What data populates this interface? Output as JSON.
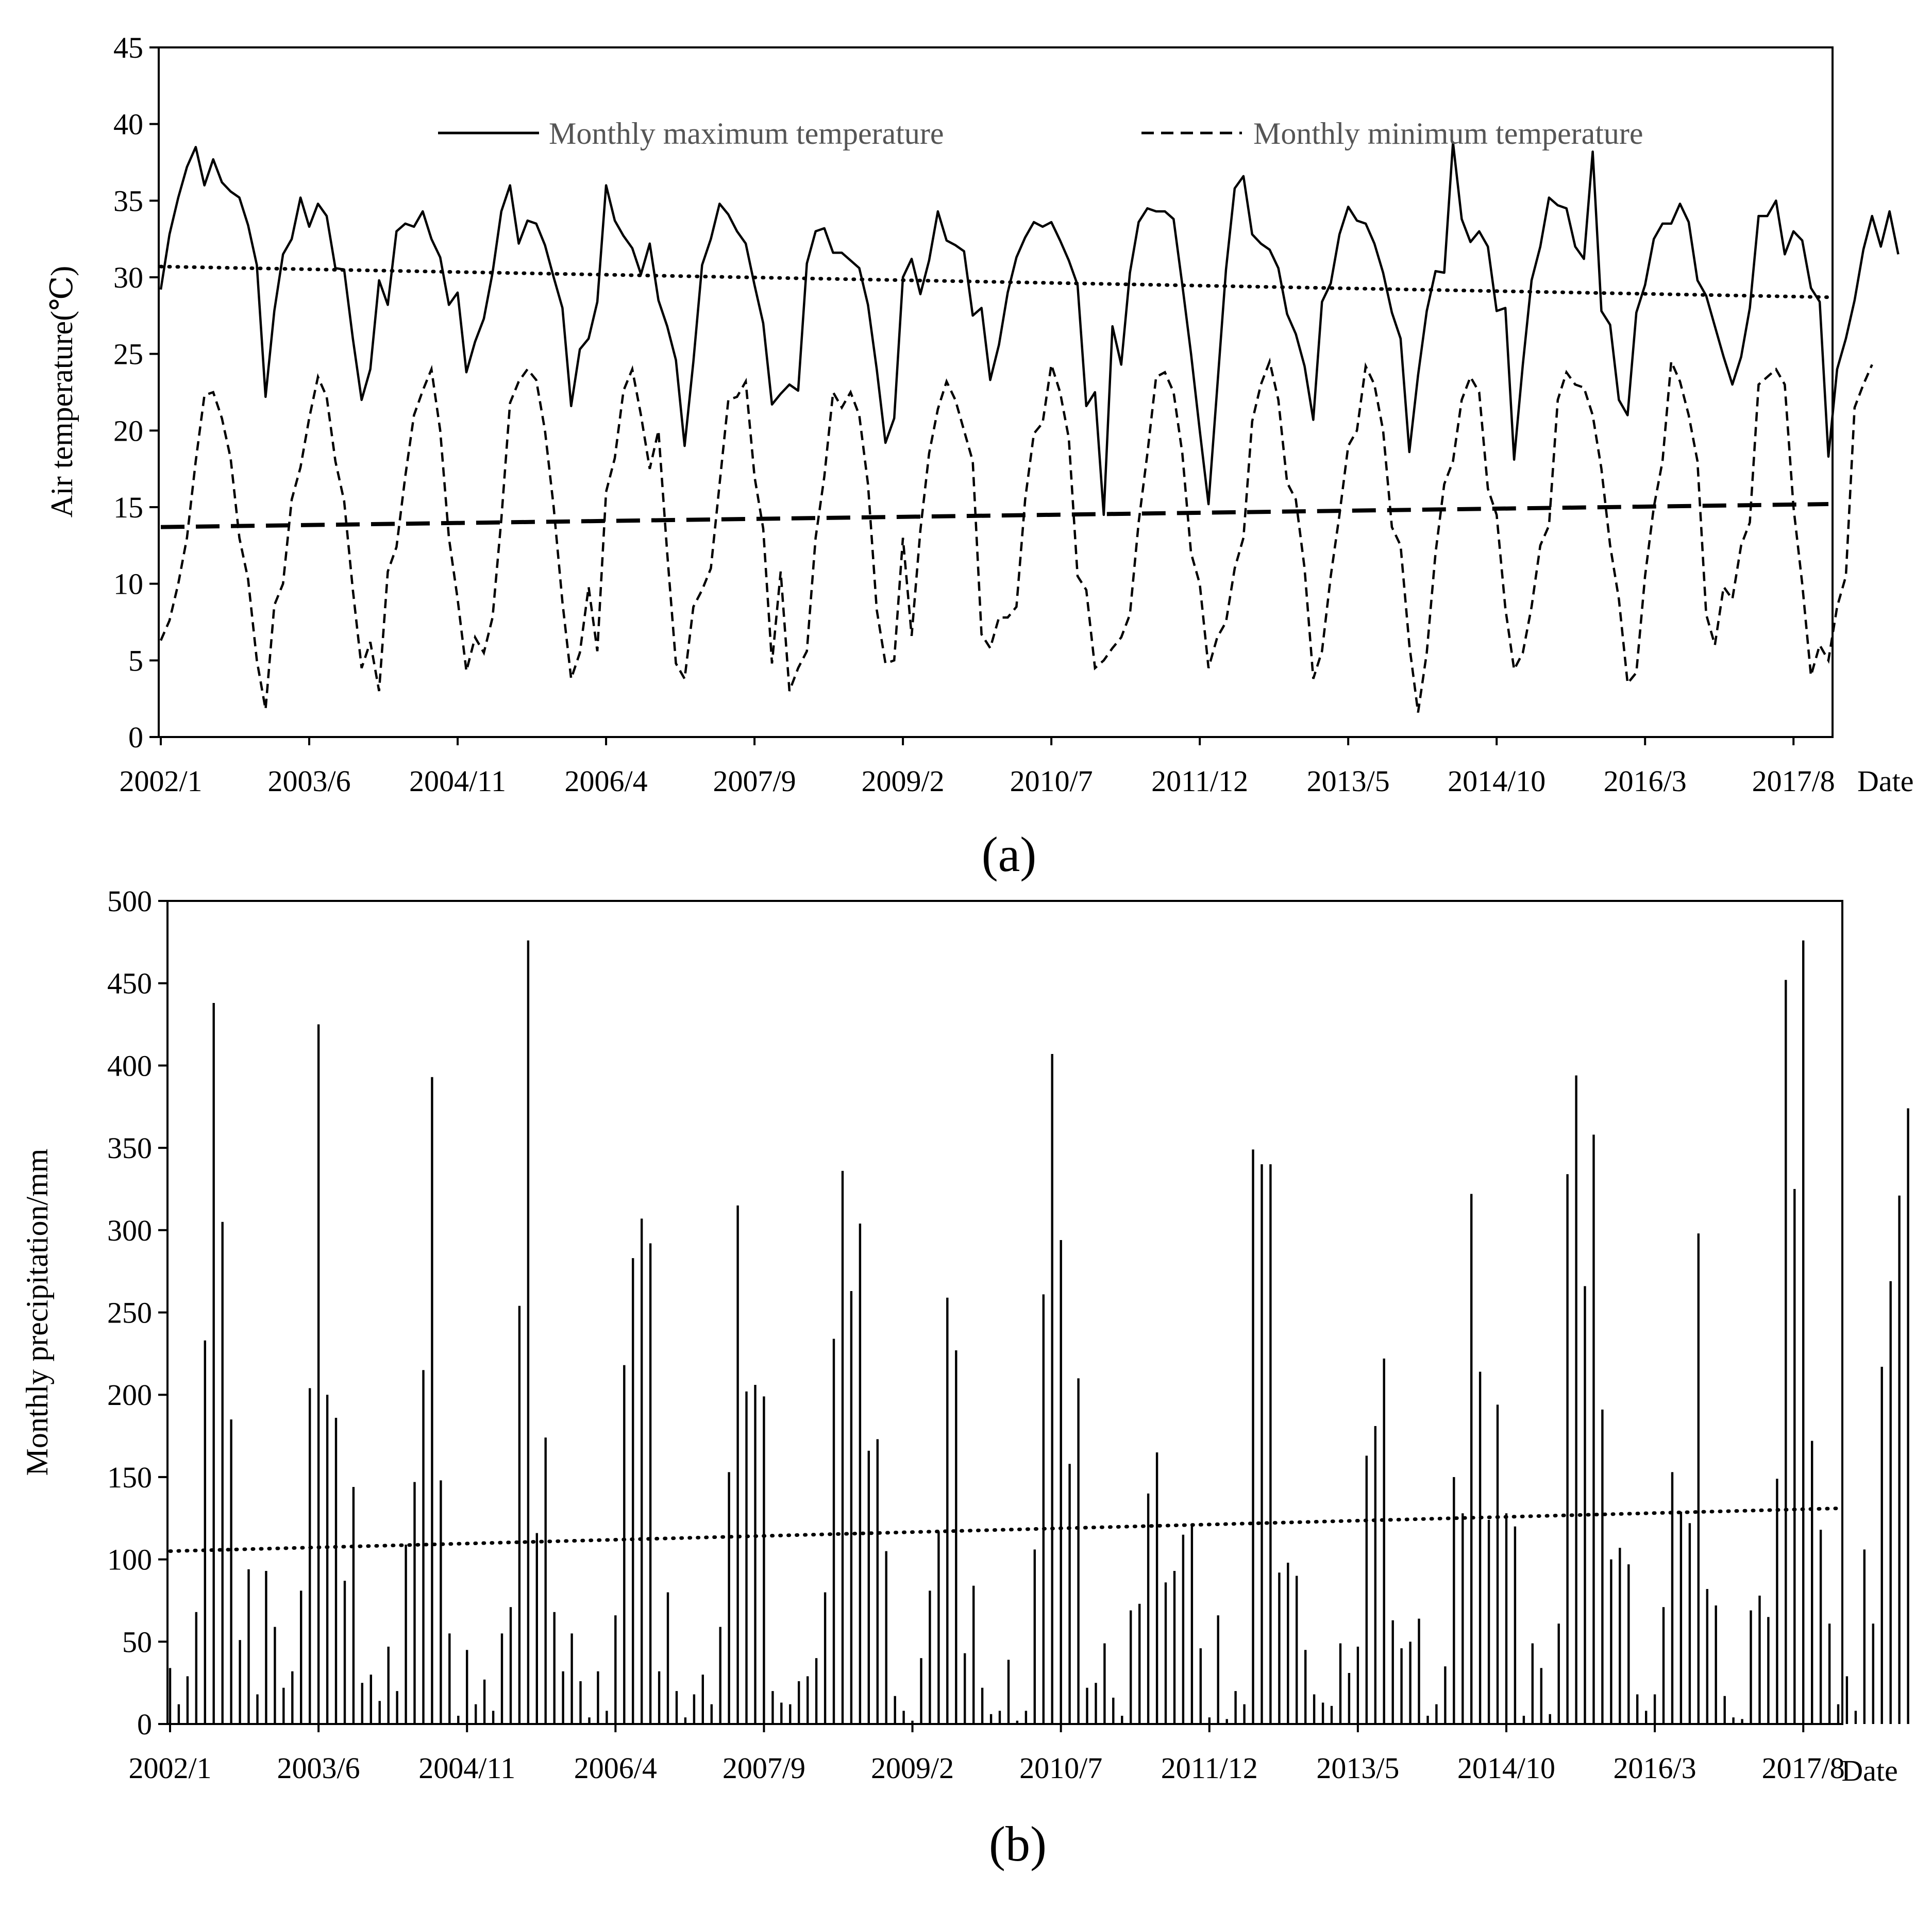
{
  "chart_data": [
    {
      "type": "line",
      "panel_label": "(a)",
      "ylabel": "Air temperature(℃)",
      "xlabel": "Date",
      "ylim": [
        0,
        45
      ],
      "yticks": [
        "0",
        "5",
        "10",
        "15",
        "20",
        "25",
        "30",
        "35",
        "40",
        "45"
      ],
      "xtick_labels": [
        "2002/1",
        "2003/6",
        "2004/11",
        "2006/4",
        "2007/9",
        "2009/2",
        "2010/7",
        "2011/12",
        "2013/5",
        "2014/10",
        "2016/3",
        "2017/8"
      ],
      "x_start": "2002/1",
      "months": 192,
      "series": [
        {
          "name": "Monthly maximum temperature",
          "style": "solid",
          "values": [
            29.2,
            32.8,
            35.2,
            37.2,
            38.5,
            36.0,
            37.7,
            36.2,
            35.6,
            35.2,
            33.4,
            30.8,
            22.2,
            27.8,
            31.5,
            32.5,
            35.2,
            33.3,
            34.8,
            34.0,
            30.6,
            30.5,
            26.0,
            22.0,
            24.0,
            29.8,
            28.2,
            33.0,
            33.5,
            33.3,
            34.3,
            32.5,
            31.3,
            28.2,
            29.0,
            23.8,
            25.8,
            27.3,
            30.3,
            34.3,
            36.0,
            32.2,
            33.7,
            33.5,
            32.1,
            30.0,
            28.0,
            21.6,
            25.3,
            26.0,
            28.4,
            36.0,
            33.7,
            32.7,
            31.9,
            30.2,
            32.2,
            28.5,
            26.8,
            24.6,
            19.0,
            24.5,
            30.8,
            32.5,
            34.8,
            34.1,
            33.0,
            32.2,
            29.5,
            27.0,
            21.7,
            22.4,
            23.0,
            22.6,
            30.9,
            33.0,
            33.2,
            31.6,
            31.6,
            31.1,
            30.6,
            28.2,
            24.0,
            19.2,
            20.8,
            30.0,
            31.2,
            28.9,
            31.1,
            34.3,
            32.4,
            32.1,
            31.7,
            27.5,
            28.0,
            23.3,
            25.6,
            29.0,
            31.3,
            32.6,
            33.6,
            33.3,
            33.6,
            32.4,
            31.1,
            29.5,
            21.6,
            22.5,
            14.5,
            26.8,
            24.3,
            30.3,
            33.6,
            34.5,
            34.3,
            34.3,
            33.8,
            29.5,
            25.0,
            20.0,
            15.2,
            22.8,
            30.5,
            35.8,
            36.6,
            32.8,
            32.2,
            31.8,
            30.6,
            27.6,
            26.3,
            24.2,
            20.7,
            28.4,
            29.6,
            32.8,
            34.6,
            33.7,
            33.5,
            32.2,
            30.3,
            27.7,
            26.0,
            18.6,
            23.6,
            27.8,
            30.4,
            30.3,
            38.8,
            33.8,
            32.3,
            33.0,
            32.0,
            27.8,
            28.0,
            18.1,
            24.3,
            29.8,
            32.0,
            35.2,
            34.7,
            34.5,
            32.0,
            31.2,
            38.2,
            27.8,
            26.9,
            22.0,
            21.0,
            27.7,
            29.5,
            32.5,
            33.5,
            33.5,
            34.8,
            33.6,
            29.8,
            28.8,
            26.8,
            24.8,
            23.0,
            24.8,
            28.0,
            34.0,
            34.0,
            35.0,
            31.5,
            33.0,
            32.4,
            29.3,
            28.4,
            18.3,
            24.0,
            26.0,
            28.5,
            31.8,
            34.0,
            32.0,
            34.3,
            31.5
          ]
        },
        {
          "name": "Monthly minimum temperature",
          "style": "dashed",
          "values": [
            6.3,
            7.6,
            10.0,
            13.0,
            18.0,
            22.3,
            22.5,
            20.8,
            18.2,
            13.0,
            10.3,
            5.0,
            1.8,
            8.6,
            10.0,
            15.5,
            17.6,
            20.8,
            23.5,
            22.2,
            18.0,
            15.4,
            9.6,
            4.5,
            6.2,
            3.0,
            10.8,
            12.4,
            17.0,
            21.0,
            22.6,
            24.0,
            20.0,
            13.0,
            9.0,
            4.3,
            6.5,
            5.5,
            7.8,
            14.2,
            21.8,
            23.2,
            24.0,
            23.3,
            20.0,
            15.0,
            8.8,
            3.8,
            5.5,
            9.8,
            5.6,
            16.0,
            18.2,
            22.6,
            24.0,
            21.0,
            17.5,
            20.0,
            12.0,
            4.8,
            3.8,
            8.5,
            9.6,
            11.0,
            16.5,
            22.0,
            22.2,
            23.2,
            17.0,
            13.6,
            4.8,
            10.8,
            3.0,
            4.5,
            5.6,
            13.0,
            17.0,
            22.5,
            21.5,
            22.5,
            21.0,
            16.5,
            8.3,
            4.8,
            5.0,
            13.0,
            6.6,
            13.5,
            18.5,
            21.4,
            23.2,
            22.0,
            20.0,
            18.0,
            6.7,
            5.8,
            7.8,
            7.8,
            8.5,
            15.5,
            19.8,
            20.5,
            24.3,
            22.5,
            19.5,
            10.5,
            9.6,
            4.5,
            5.0,
            5.8,
            6.5,
            8.0,
            14.0,
            18.5,
            23.5,
            23.8,
            22.5,
            18.5,
            12.0,
            10.0,
            4.5,
            6.5,
            7.5,
            11.0,
            13.0,
            20.6,
            23.0,
            24.5,
            22.0,
            16.6,
            15.5,
            11.0,
            3.8,
            5.6,
            10.5,
            14.5,
            19.0,
            20.0,
            24.2,
            23.0,
            20.0,
            13.7,
            12.5,
            6.0,
            1.6,
            5.5,
            12.0,
            16.5,
            18.0,
            22.0,
            23.5,
            22.5,
            16.2,
            14.5,
            8.4,
            4.4,
            5.5,
            8.5,
            12.5,
            13.8,
            22.0,
            23.8,
            23.0,
            22.8,
            21.0,
            17.5,
            12.5,
            9.0,
            3.5,
            4.2,
            10.5,
            15.0,
            18.0,
            24.5,
            23.2,
            21.0,
            18.0,
            8.0,
            6.0,
            9.8,
            9.0,
            12.5,
            14.0,
            23.0,
            23.5,
            24.0,
            23.0,
            15.0,
            10.0,
            4.0,
            6.0,
            5.0,
            8.5,
            10.5,
            21.5,
            23.0,
            24.3
          ]
        },
        {
          "name": "Trend (maximum temperature)",
          "style": "dotted",
          "values_endpoints": [
            30.7,
            28.7
          ]
        },
        {
          "name": "Trend (minimum temperature)",
          "style": "long-dash",
          "values_endpoints": [
            13.7,
            15.2
          ]
        }
      ]
    },
    {
      "type": "bar",
      "panel_label": "(b)",
      "ylabel": "Monthly precipitation/mm",
      "xlabel": "Date",
      "ylim": [
        0,
        500
      ],
      "yticks": [
        "0",
        "50",
        "100",
        "150",
        "200",
        "250",
        "300",
        "350",
        "400",
        "450",
        "500"
      ],
      "xtick_labels": [
        "2002/1",
        "2003/6",
        "2004/11",
        "2006/4",
        "2007/9",
        "2009/2",
        "2010/7",
        "2011/12",
        "2013/5",
        "2014/10",
        "2016/3",
        "2017/8"
      ],
      "x_start": "2002/1",
      "months": 192,
      "series": [
        {
          "name": "Monthly precipitation",
          "values": [
            34,
            12,
            29,
            68,
            233,
            438,
            305,
            185,
            51,
            94,
            18,
            93,
            59,
            22,
            32,
            81,
            204,
            425,
            200,
            186,
            87,
            144,
            25,
            30,
            14,
            47,
            20,
            109,
            147,
            215,
            393,
            148,
            55,
            5,
            45,
            12,
            27,
            8,
            55,
            71,
            254,
            476,
            116,
            174,
            68,
            32,
            55,
            26,
            4,
            32,
            8,
            66,
            218,
            283,
            307,
            292,
            32,
            80,
            20,
            4,
            18,
            30,
            12,
            59,
            153,
            315,
            202,
            206,
            199,
            20,
            13,
            12,
            26,
            29,
            40,
            80,
            234,
            336,
            263,
            304,
            166,
            173,
            105,
            17,
            8,
            2,
            40,
            81,
            117,
            259,
            227,
            43,
            84,
            22,
            6,
            8,
            39,
            2,
            8,
            106,
            261,
            407,
            294,
            158,
            210,
            22,
            25,
            49,
            16,
            5,
            69,
            73,
            140,
            165,
            86,
            93,
            115,
            121,
            46,
            4,
            66,
            3,
            20,
            12,
            349,
            340,
            340,
            92,
            98,
            90,
            45,
            18,
            13,
            11,
            49,
            31,
            47,
            163,
            181,
            222,
            63,
            46,
            50,
            64,
            5,
            12,
            35,
            150,
            128,
            322,
            214,
            124,
            194,
            128,
            120,
            5,
            49,
            34,
            6,
            61,
            334,
            394,
            266,
            358,
            191,
            100,
            107,
            97,
            18,
            8,
            18,
            71,
            153,
            129,
            122,
            298,
            82,
            72,
            17,
            4,
            3,
            69,
            78,
            65,
            149,
            452,
            325,
            476,
            172,
            118,
            61,
            12,
            29,
            8,
            106,
            61,
            217,
            269,
            321,
            374
          ]
        },
        {
          "name": "Trend (precipitation)",
          "style": "dotted",
          "values_endpoints": [
            105,
            131
          ]
        }
      ]
    }
  ]
}
